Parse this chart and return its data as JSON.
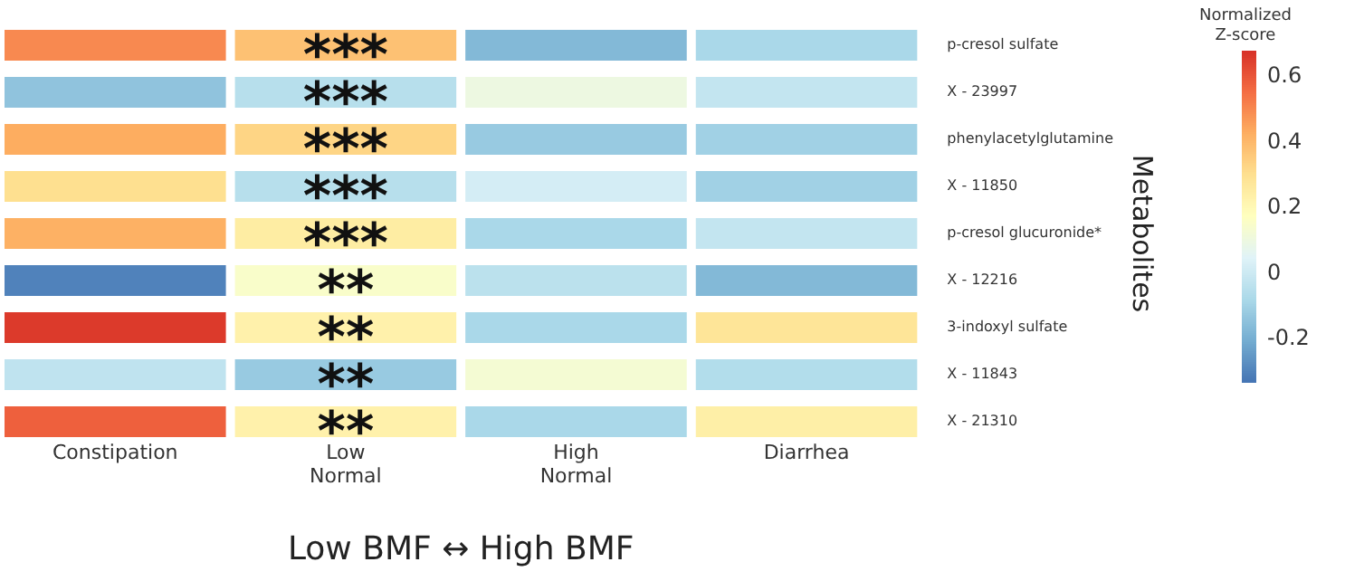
{
  "chart_data": {
    "type": "heatmap",
    "xlabel": "Low BMF ↔ High BMF",
    "ylabel": "Metabolites",
    "clabel": "Normalized Z-score",
    "categories": [
      "Constipation",
      "Low Normal",
      "High Normal",
      "Diarrhea"
    ],
    "y_categories": [
      "p-cresol sulfate",
      "X - 23997",
      "phenylacetylglutamine",
      "X - 11850",
      "p-cresol glucuronide*",
      "X - 12216",
      "3-indoxyl sulfate",
      "X - 11843",
      "X - 21310"
    ],
    "cells": [
      [
        0.5,
        0.38,
        -0.17,
        -0.08
      ],
      [
        -0.14,
        -0.05,
        0.1,
        -0.02
      ],
      [
        0.43,
        0.33,
        -0.12,
        -0.1
      ],
      [
        0.3,
        -0.05,
        0.02,
        -0.1
      ],
      [
        0.42,
        0.25,
        -0.08,
        -0.02
      ],
      [
        -0.3,
        0.15,
        -0.04,
        -0.17
      ],
      [
        0.66,
        0.23,
        -0.08,
        0.28
      ],
      [
        -0.03,
        -0.12,
        0.13,
        -0.06
      ],
      [
        0.58,
        0.23,
        -0.08,
        0.24
      ]
    ],
    "cell_labels": [
      [
        null,
        "***",
        null,
        null
      ],
      [
        null,
        "***",
        null,
        null
      ],
      [
        null,
        "***",
        null,
        null
      ],
      [
        null,
        "***",
        null,
        null
      ],
      [
        null,
        "***",
        null,
        null
      ],
      [
        null,
        "**",
        null,
        null
      ],
      [
        null,
        "**",
        null,
        null
      ],
      [
        null,
        "**",
        null,
        null
      ],
      [
        null,
        "**",
        null,
        null
      ]
    ],
    "clim": [
      -0.33,
      0.68
    ],
    "cticks": [
      -0.2,
      0,
      0.2,
      0.4,
      0.6
    ]
  }
}
